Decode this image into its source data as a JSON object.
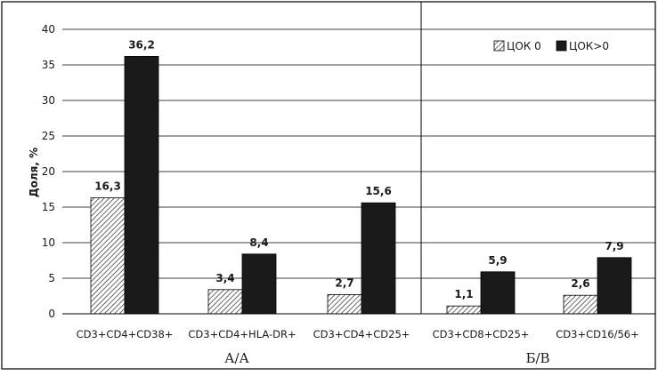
{
  "chart_data": {
    "type": "bar",
    "ylabel": "Доля, %",
    "ylim": [
      0,
      40
    ],
    "yticks": [
      0,
      5,
      10,
      15,
      20,
      25,
      30,
      35,
      40
    ],
    "grid": true,
    "legend_position": "top-right",
    "categories": [
      "CD3+CD4+CD38+",
      "CD3+CD4+HLA-DR+",
      "CD3+CD4+CD25+",
      "CD3+CD8+CD25+",
      "CD3+CD16/56+"
    ],
    "groups": [
      {
        "label": "А/А",
        "categories": [
          "CD3+CD4+CD38+",
          "CD3+CD4+HLA-DR+",
          "CD3+CD4+CD25+"
        ]
      },
      {
        "label": "Б/В",
        "categories": [
          "CD3+CD8+CD25+",
          "CD3+CD16/56+"
        ]
      }
    ],
    "series": [
      {
        "name": "ЦОК 0",
        "style": "hatched",
        "values": [
          16.3,
          3.4,
          2.7,
          1.1,
          2.6
        ],
        "labels": [
          "16,3",
          "3,4",
          "2,7",
          "1,1",
          "2,6"
        ]
      },
      {
        "name": "ЦОК>0",
        "style": "solid",
        "color": "#1a1a1a",
        "values": [
          36.2,
          8.4,
          15.6,
          5.9,
          7.9
        ],
        "labels": [
          "36,2",
          "8,4",
          "15,6",
          "5,9",
          "7,9"
        ]
      }
    ]
  }
}
